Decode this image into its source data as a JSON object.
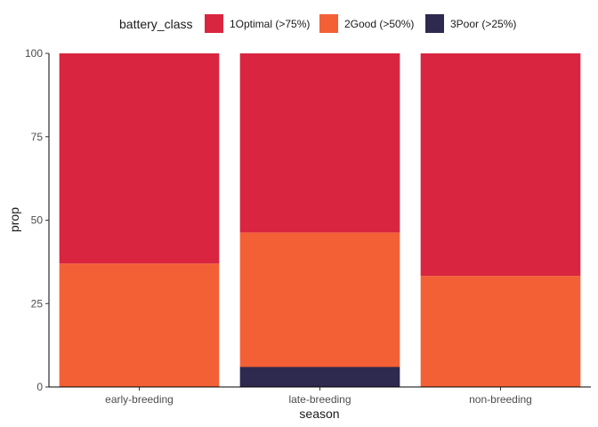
{
  "chart_data": {
    "type": "bar",
    "stacked": true,
    "title": "",
    "xlabel": "season",
    "ylabel": "prop",
    "ylim": [
      0,
      100
    ],
    "yticks": [
      "0",
      "25",
      "50",
      "75",
      "100"
    ],
    "categories": [
      "early-breeding",
      "late-breeding",
      "non-breeding"
    ],
    "legend": {
      "title": "battery_class",
      "position": "top"
    },
    "series": [
      {
        "name": "1Optimal (>75%)",
        "color": "#d92540",
        "values": [
          63,
          53.7,
          66.7
        ]
      },
      {
        "name": "2Good (>50%)",
        "color": "#f46036",
        "values": [
          37,
          40.3,
          33.3
        ]
      },
      {
        "name": "3Poor (>25%)",
        "color": "#2e294e",
        "values": [
          0,
          6,
          0
        ]
      }
    ],
    "grid": false
  }
}
